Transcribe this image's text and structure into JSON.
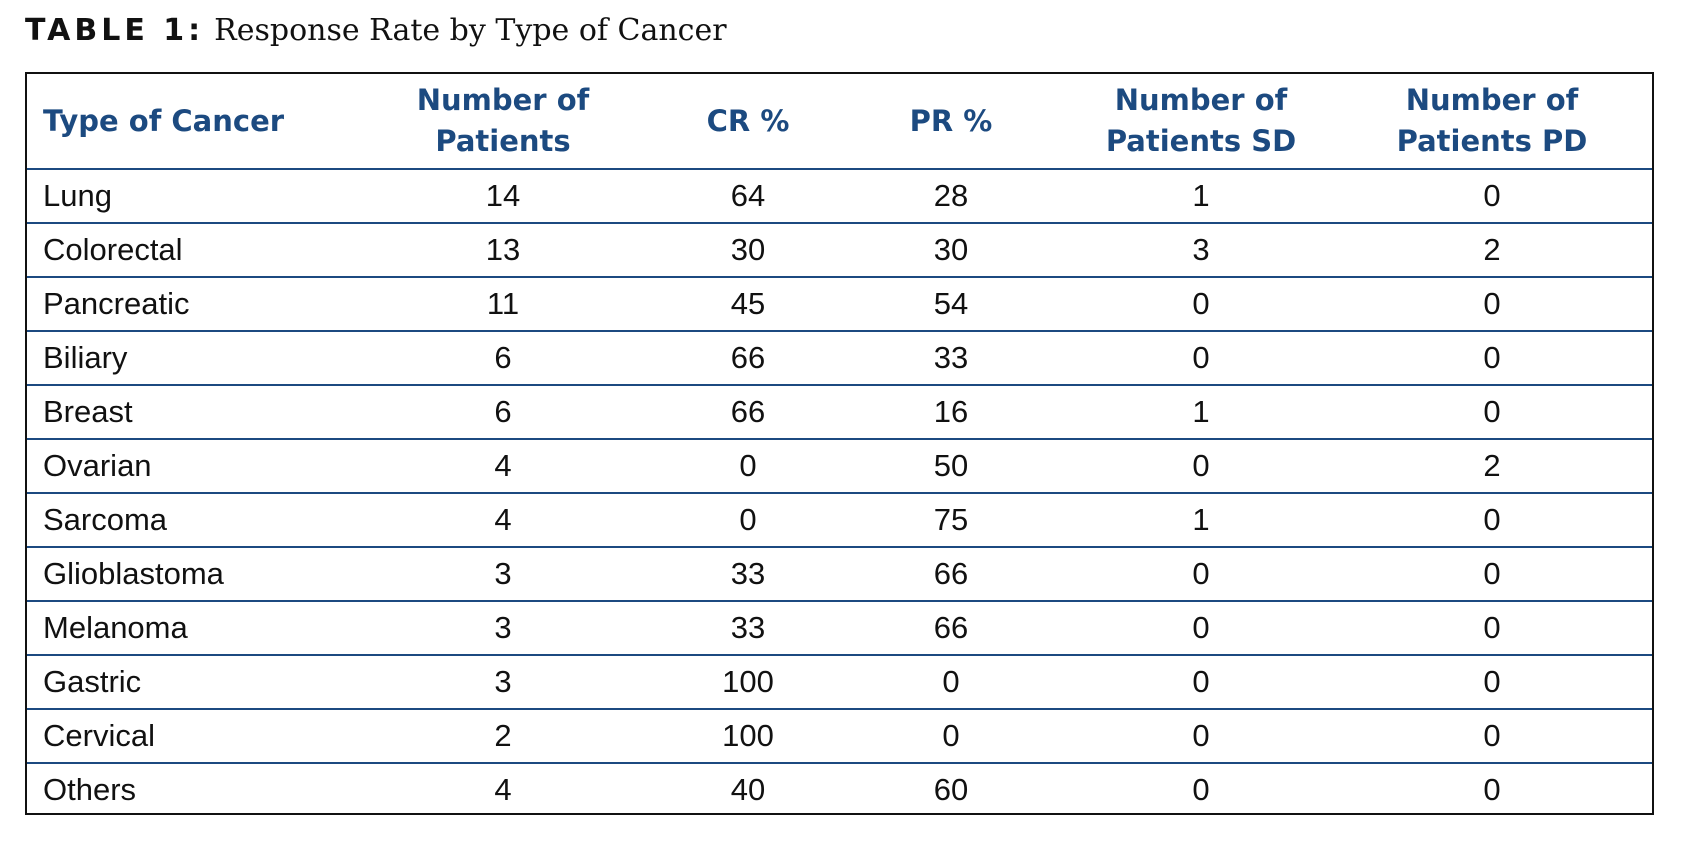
{
  "caption": {
    "label": "TABLE 1:",
    "title": "Response Rate by Type of Cancer"
  },
  "table": {
    "headers": [
      "Type of Cancer",
      "Number of Patients",
      "CR %",
      "PR %",
      "Number of Patients SD",
      "Number of Patients PD"
    ],
    "rows": [
      [
        "Lung",
        "14",
        "64",
        "28",
        "1",
        "0"
      ],
      [
        "Colorectal",
        "13",
        "30",
        "30",
        "3",
        "2"
      ],
      [
        "Pancreatic",
        "11",
        "45",
        "54",
        "0",
        "0"
      ],
      [
        "Biliary",
        "6",
        "66",
        "33",
        "0",
        "0"
      ],
      [
        "Breast",
        "6",
        "66",
        "16",
        "1",
        "0"
      ],
      [
        "Ovarian",
        "4",
        "0",
        "50",
        "0",
        "2"
      ],
      [
        "Sarcoma",
        "4",
        "0",
        "75",
        "1",
        "0"
      ],
      [
        "Glioblastoma",
        "3",
        "33",
        "66",
        "0",
        "0"
      ],
      [
        "Melanoma",
        "3",
        "33",
        "66",
        "0",
        "0"
      ],
      [
        "Gastric",
        "3",
        "100",
        "0",
        "0",
        "0"
      ],
      [
        "Cervical",
        "2",
        "100",
        "0",
        "0",
        "0"
      ],
      [
        "Others",
        "4",
        "40",
        "60",
        "0",
        "0"
      ]
    ]
  },
  "colors": {
    "header_text": "#1c4a80",
    "row_rule": "#1c4a80",
    "body_text": "#111111",
    "frame": "#111111"
  }
}
